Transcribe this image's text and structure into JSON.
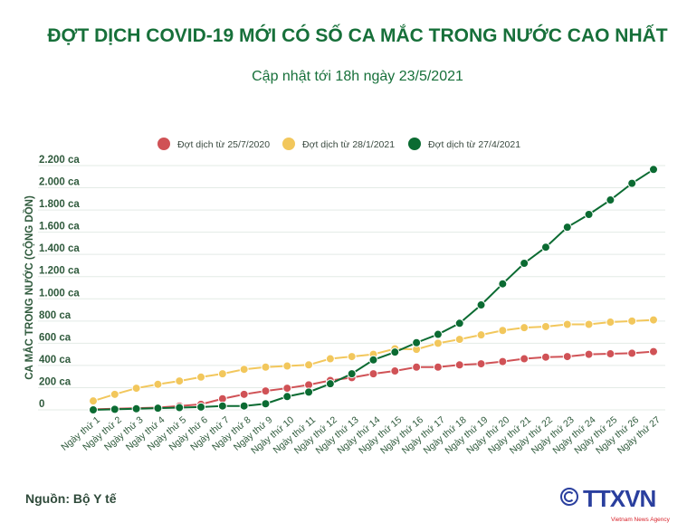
{
  "header": {
    "title": "ĐỢT DỊCH COVID-19 MỚI CÓ SỐ CA MẮC TRONG NƯỚC CAO NHẤT",
    "subtitle": "Cập nhật tới 18h ngày 23/5/2021"
  },
  "footer": {
    "source": "Nguồn: Bộ Y tế",
    "logo_text": "TTXVN",
    "logo_tagline": "Vietnam News Agency",
    "copyright_icon": "copyright-icon"
  },
  "chart_data": {
    "type": "line",
    "title": "",
    "xlabel": "",
    "ylabel": "CA MẮC TRONG NƯỚC (CỘNG DỒN)",
    "ylim": [
      0,
      2200
    ],
    "yticks": [
      0,
      200,
      400,
      600,
      800,
      1000,
      1200,
      1400,
      1600,
      1800,
      2000,
      2200
    ],
    "ytick_labels": [
      "0",
      "200 ca",
      "400 ca",
      "600 ca",
      "800 ca",
      "1.000 ca",
      "1.200 ca",
      "1.400 ca",
      "1.600 ca",
      "1.800 ca",
      "2.000 ca",
      "2.200 ca"
    ],
    "grid": true,
    "legend_position": "top",
    "categories": [
      "Ngày thứ 1",
      "Ngày thứ 2",
      "Ngày thứ 3",
      "Ngày thứ 4",
      "Ngày thứ 5",
      "Ngày thứ 6",
      "Ngày thứ 7",
      "Ngày thứ 8",
      "Ngày thứ 9",
      "Ngày thứ 10",
      "Ngày thứ 11",
      "Ngày thứ 12",
      "Ngày thứ 13",
      "Ngày thứ 14",
      "Ngày thứ 15",
      "Ngày thứ 16",
      "Ngày thứ 17",
      "Ngày thứ 18",
      "Ngày thứ 19",
      "Ngày thứ 20",
      "Ngày thứ 21",
      "Ngày thứ 22",
      "Ngày thứ 23",
      "Ngày thứ 24",
      "Ngày thứ 25",
      "Ngày thứ 26",
      "Ngày thứ 27"
    ],
    "series": [
      {
        "name": "Đợt dịch từ 25/7/2020",
        "color": "#d05256",
        "values": [
          5,
          10,
          15,
          20,
          35,
          50,
          100,
          140,
          170,
          195,
          225,
          265,
          290,
          325,
          350,
          385,
          385,
          405,
          415,
          435,
          460,
          475,
          480,
          500,
          505,
          510,
          525
        ]
      },
      {
        "name": "Đợt dịch từ 28/1/2021",
        "color": "#f2c75c",
        "values": [
          80,
          140,
          195,
          230,
          260,
          295,
          325,
          365,
          385,
          395,
          405,
          460,
          480,
          500,
          550,
          545,
          600,
          635,
          675,
          715,
          740,
          750,
          770,
          770,
          790,
          800,
          810
        ]
      },
      {
        "name": "Đợt dịch từ 27/4/2021",
        "color": "#0b6b32",
        "values": [
          0,
          5,
          10,
          15,
          20,
          25,
          35,
          35,
          55,
          120,
          160,
          235,
          325,
          450,
          520,
          605,
          680,
          780,
          945,
          1135,
          1320,
          1465,
          1645,
          1760,
          1890,
          2040,
          2165
        ]
      }
    ]
  }
}
